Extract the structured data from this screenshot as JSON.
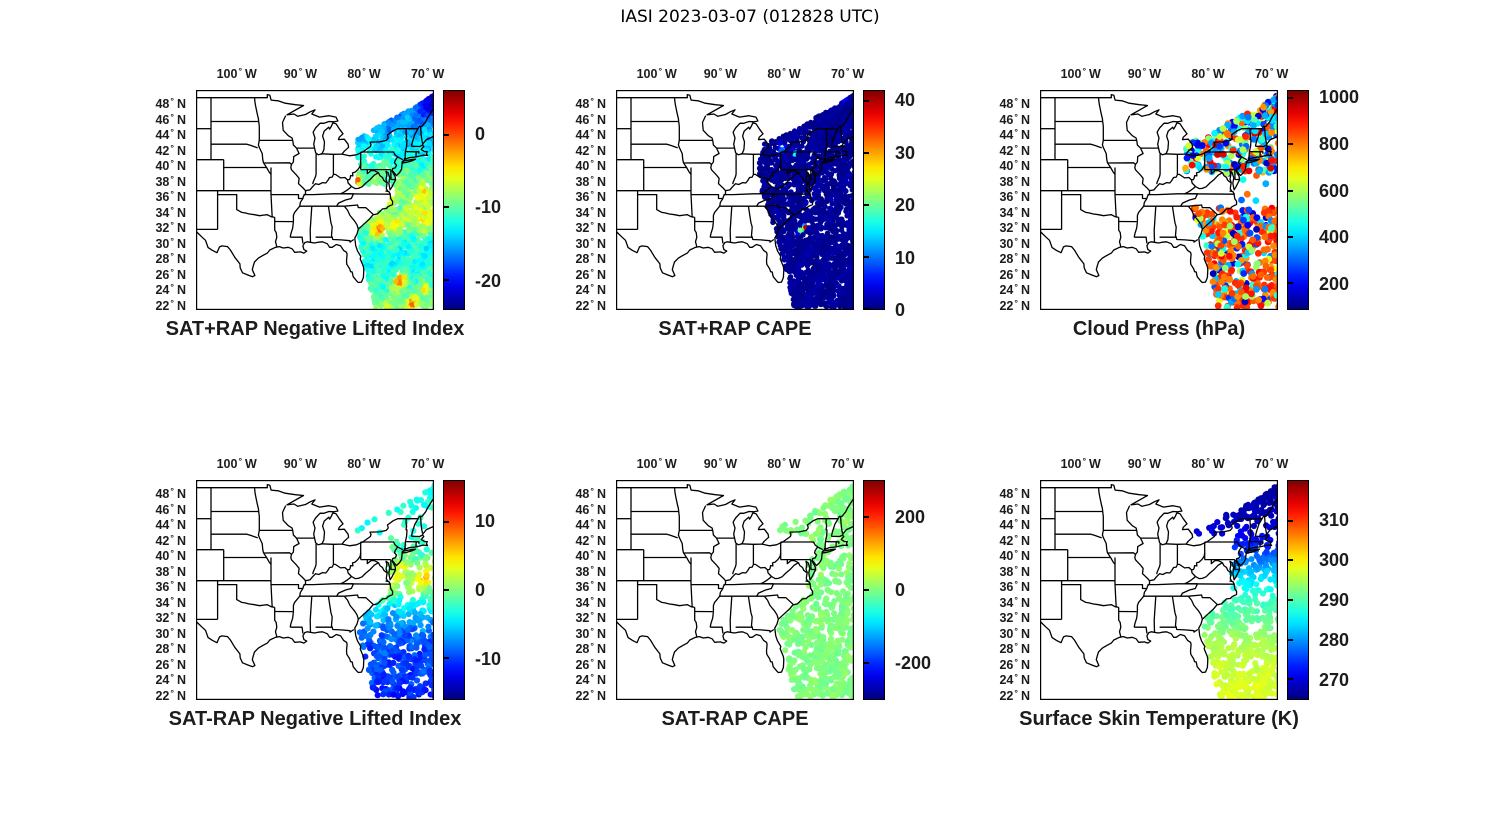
{
  "figure_title": "IASI 2023-03-07 (012828 UTC)",
  "colors": {
    "background": "#ffffff",
    "map_outline": "#000000",
    "label_text": "#1c1c1c",
    "colormap": "jet"
  },
  "axes": {
    "degree": "°",
    "lon_range": [
      -106.4,
      -69.0
    ],
    "lat_range": [
      21.6,
      50.0
    ],
    "lon_ticks": [
      {
        "value": -100,
        "label": "100",
        "suffix": "W"
      },
      {
        "value": -90,
        "label": "90",
        "suffix": "W"
      },
      {
        "value": -80,
        "label": "80",
        "suffix": "W"
      },
      {
        "value": -70,
        "label": "70",
        "suffix": "W"
      }
    ],
    "lat_ticks": [
      {
        "value": 48,
        "label": "48",
        "suffix": "N"
      },
      {
        "value": 46,
        "label": "46",
        "suffix": "N"
      },
      {
        "value": 44,
        "label": "44",
        "suffix": "N"
      },
      {
        "value": 42,
        "label": "42",
        "suffix": "N"
      },
      {
        "value": 40,
        "label": "40",
        "suffix": "N"
      },
      {
        "value": 38,
        "label": "38",
        "suffix": "N"
      },
      {
        "value": 36,
        "label": "36",
        "suffix": "N"
      },
      {
        "value": 34,
        "label": "34",
        "suffix": "N"
      },
      {
        "value": 32,
        "label": "32",
        "suffix": "N"
      },
      {
        "value": 30,
        "label": "30",
        "suffix": "N"
      },
      {
        "value": 28,
        "label": "28",
        "suffix": "N"
      },
      {
        "value": 26,
        "label": "26",
        "suffix": "N"
      },
      {
        "value": 24,
        "label": "24",
        "suffix": "N"
      },
      {
        "value": 22,
        "label": "22",
        "suffix": "N"
      }
    ]
  },
  "satellite_swath": {
    "edge_lon_by_lat": [
      [
        50,
        -67.8
      ],
      [
        47.7,
        -72.1
      ],
      [
        42.9,
        -83.3
      ],
      [
        40,
        -84.0
      ],
      [
        37,
        -83.5
      ],
      [
        33,
        -81.8
      ],
      [
        29,
        -80.3
      ],
      [
        25,
        -79.2
      ],
      [
        21.6,
        -78.3
      ]
    ],
    "lon_right": -68.5
  },
  "chart_data": [
    {
      "id": "sat-plus-rap-negative-lifted-index",
      "type": "scatter",
      "row": 0,
      "col": 0,
      "title": "SAT+RAP Negative Lifted Index",
      "pattern": "Dense IASI swath over the NE US and western Atlantic; mostly cyan-blue (-10 to -20) with orange patches near 0 around 31-33N and 24-26N, a small yellow spot over West Virginia, darker blue in the far northeast.",
      "colorbar": {
        "vmin": -24,
        "vmax": 6,
        "ticks": [
          {
            "value": 0,
            "label": "0"
          },
          {
            "value": -10,
            "label": "-10"
          },
          {
            "value": -20,
            "label": "-20"
          }
        ]
      },
      "render": {
        "seed": 101,
        "count": 2600,
        "radius": 2.7,
        "mask": "land_ocean_retrieval",
        "mask_params": {},
        "field": {
          "base": [
            [
              50,
              -18
            ],
            [
              46,
              -16
            ],
            [
              42,
              -13
            ],
            [
              39,
              -10
            ],
            [
              36,
              -8
            ],
            [
              33,
              -9
            ],
            [
              30,
              -12
            ],
            [
              27,
              -12
            ],
            [
              24,
              -10
            ],
            [
              21.6,
              -8
            ]
          ],
          "noise": 2.5,
          "patches": [
            {
              "lon": -80.9,
              "lat": 38.35,
              "amp": 9,
              "sig": 0.45
            },
            {
              "lon": -77.6,
              "lat": 31.9,
              "amp": 8,
              "sig": 1.1
            },
            {
              "lon": -75.2,
              "lat": 32.5,
              "amp": 5,
              "sig": 1.0
            },
            {
              "lon": -74.3,
              "lat": 25.4,
              "amp": 9,
              "sig": 1.0
            },
            {
              "lon": -70.3,
              "lat": 24.2,
              "amp": 8,
              "sig": 0.7
            },
            {
              "lon": -70.8,
              "lat": 33.5,
              "amp": 4,
              "sig": 1.6
            },
            {
              "lon": -69.2,
              "lat": 48.2,
              "amp": -5,
              "sig": 1.6
            },
            {
              "lon": -70.5,
              "lat": 36.8,
              "amp": 3,
              "sig": 1.2
            },
            {
              "lon": -72.5,
              "lat": 22.5,
              "amp": 6,
              "sig": 0.8
            }
          ]
        }
      }
    },
    {
      "id": "sat-plus-rap-cape",
      "type": "scatter",
      "row": 0,
      "col": 1,
      "title": "SAT+RAP CAPE",
      "pattern": "Full swath nearly all ~0 (dark blue); small enhanced spots ~12-16 near Lake Erie and central PA, ~16 at the top edge near 71W, and a small red maximum ~40 offshore near 32.3N 76.6W.",
      "colorbar": {
        "vmin": 0,
        "vmax": 42,
        "ticks": [
          {
            "value": 40,
            "label": "40"
          },
          {
            "value": 30,
            "label": "30"
          },
          {
            "value": 20,
            "label": "20"
          },
          {
            "value": 10,
            "label": "10"
          },
          {
            "value": 0,
            "label": "0"
          }
        ]
      },
      "render": {
        "seed": 102,
        "count": 2600,
        "radius": 2.7,
        "mask": "full",
        "mask_params": {},
        "field": {
          "base": [
            [
              50,
              1
            ],
            [
              21.6,
              1
            ]
          ],
          "noise": 1.2,
          "patches": [
            {
              "lon": -80.3,
              "lat": 42.55,
              "amp": 14,
              "sig": 0.5
            },
            {
              "lon": -78.4,
              "lat": 41.85,
              "amp": 16,
              "sig": 0.4
            },
            {
              "lon": -70.7,
              "lat": 49.0,
              "amp": 16,
              "sig": 0.5
            },
            {
              "lon": -76.6,
              "lat": 32.3,
              "amp": 40,
              "sig": 0.28
            },
            {
              "lon": -77.5,
              "lat": 31.8,
              "amp": 22,
              "sig": 0.28
            }
          ]
        }
      }
    },
    {
      "id": "cloud-press",
      "type": "scatter",
      "row": 0,
      "col": 2,
      "title": "Cloud Press (hPa)",
      "pattern": "Sparse cloudy-scene dots: mixed 150-650 hPa (blue/cyan/green) with some 750-950 hPa (orange) over the Northeast; mostly 770-920 hPa (orange) with scattered 250-500 hPa (blue) south of 35N over the Atlantic.",
      "colorbar": {
        "vmin": 90,
        "vmax": 1030,
        "ticks": [
          {
            "value": 1000,
            "label": "1000"
          },
          {
            "value": 800,
            "label": "800"
          },
          {
            "value": 600,
            "label": "600"
          },
          {
            "value": 400,
            "label": "400"
          },
          {
            "value": 200,
            "label": "200"
          }
        ]
      },
      "render": {
        "seed": 103,
        "count": 800,
        "radius": 3.4,
        "mask": "cloudy_scenes",
        "mask_params": {},
        "field": {
          "mixture": [
            {
              "lat_min": 39.2,
              "lat_max": 50.5,
              "dist": [
                {
                  "p": 0.36,
                  "lo": 300,
                  "hi": 480
                },
                {
                  "p": 0.2,
                  "lo": 140,
                  "hi": 300
                },
                {
                  "p": 0.18,
                  "lo": 480,
                  "hi": 650
                },
                {
                  "p": 0.26,
                  "lo": 750,
                  "hi": 950
                }
              ]
            },
            {
              "lat_min": 34.8,
              "lat_max": 39.2,
              "dist": [
                {
                  "p": 0.5,
                  "lo": 760,
                  "hi": 900
                },
                {
                  "p": 0.5,
                  "lo": 300,
                  "hi": 520
                }
              ]
            },
            {
              "lat_min": 21.0,
              "lat_max": 34.8,
              "dist": [
                {
                  "p": 0.6,
                  "lo": 770,
                  "hi": 920
                },
                {
                  "p": 0.2,
                  "lo": 260,
                  "hi": 500
                },
                {
                  "p": 0.12,
                  "lo": 550,
                  "hi": 700
                },
                {
                  "p": 0.08,
                  "lo": 130,
                  "hi": 260
                }
              ]
            }
          ]
        }
      }
    },
    {
      "id": "sat-minus-rap-negative-lifted-index",
      "type": "scatter",
      "row": 1,
      "col": 0,
      "title": "SAT-RAP Negative Lifted Index",
      "pattern": "Clear-sky dots: ~-3 (cyan) over northern New England, 0 to +4 (green/yellow) along the 36-41N coast, -5 to -12 (blue) over the Atlantic south of 34N.",
      "colorbar": {
        "vmin": -16,
        "vmax": 16,
        "ticks": [
          {
            "value": 10,
            "label": "10"
          },
          {
            "value": 0,
            "label": "0"
          },
          {
            "value": -10,
            "label": "-10"
          }
        ]
      },
      "render": {
        "seed": 104,
        "count": 620,
        "radius": 3.1,
        "mask": "coast_band",
        "mask_params": {
          "density_north": 0.25
        },
        "field": {
          "base": [
            [
              50,
              -3
            ],
            [
              44,
              -3
            ],
            [
              42,
              -2
            ],
            [
              40,
              -1
            ],
            [
              38.5,
              1
            ],
            [
              37,
              2
            ],
            [
              35.5,
              0
            ],
            [
              34,
              -4
            ],
            [
              31,
              -8
            ],
            [
              28,
              -10
            ],
            [
              25,
              -10
            ],
            [
              21.6,
              -11
            ]
          ],
          "noise": 2.2,
          "patches": [
            {
              "lon": -74.2,
              "lat": 38.6,
              "amp": 4,
              "sig": 0.8
            },
            {
              "lon": -70.5,
              "lat": 37.4,
              "amp": 5,
              "sig": 0.9
            },
            {
              "lon": -69.5,
              "lat": 39.5,
              "amp": 3,
              "sig": 0.9
            }
          ]
        }
      }
    },
    {
      "id": "sat-minus-rap-cape",
      "type": "scatter",
      "row": 1,
      "col": 1,
      "title": "SAT-RAP CAPE",
      "pattern": "All dots near 0 (light green) across the coastal band and Atlantic swath.",
      "colorbar": {
        "vmin": -300,
        "vmax": 300,
        "ticks": [
          {
            "value": 200,
            "label": "200"
          },
          {
            "value": 0,
            "label": "0"
          },
          {
            "value": -200,
            "label": "-200"
          }
        ]
      },
      "render": {
        "seed": 105,
        "count": 680,
        "radius": 3.1,
        "mask": "coast_band",
        "mask_params": {
          "density_north": 0.45
        },
        "field": {
          "base": [
            [
              50,
              0
            ],
            [
              21.6,
              0
            ]
          ],
          "noise": 18,
          "patches": []
        }
      }
    },
    {
      "id": "surface-skin-temperature",
      "type": "scatter",
      "row": 1,
      "col": 2,
      "title": "Surface Skin Temperature (K)",
      "pattern": "Cold ~267-271 K (dark blue) north of 43N, ~275-283 K (blue/cyan) 38-42N, warming to ~289-298 K (green/yellow) south of 34N.",
      "colorbar": {
        "vmin": 265,
        "vmax": 320,
        "ticks": [
          {
            "value": 310,
            "label": "310"
          },
          {
            "value": 300,
            "label": "300"
          },
          {
            "value": 290,
            "label": "290"
          },
          {
            "value": 280,
            "label": "280"
          },
          {
            "value": 270,
            "label": "270"
          }
        ]
      },
      "render": {
        "seed": 106,
        "count": 740,
        "radius": 3.1,
        "mask": "coast_band",
        "mask_params": {
          "density_north": 0.55
        },
        "field": {
          "base": [
            [
              50,
              267
            ],
            [
              45,
              268
            ],
            [
              43,
              271
            ],
            [
              41,
              275
            ],
            [
              39.5,
              279
            ],
            [
              38,
              283
            ],
            [
              36.5,
              286
            ],
            [
              34.5,
              289
            ],
            [
              32,
              291
            ],
            [
              29,
              295
            ],
            [
              26,
              296.5
            ],
            [
              21.6,
              298
            ]
          ],
          "noise": 1.5,
          "patches": []
        }
      }
    }
  ]
}
